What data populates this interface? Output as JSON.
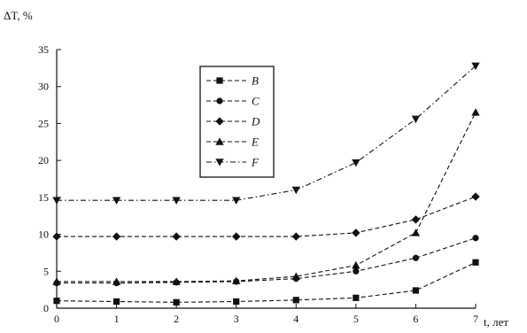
{
  "chart_data": {
    "type": "line",
    "ylabel": "ΔT, %",
    "xlabel": "t, лет",
    "x": [
      0,
      1,
      2,
      3,
      4,
      5,
      6,
      7
    ],
    "xlim": [
      0,
      7
    ],
    "ylim": [
      0,
      35
    ],
    "x_ticks": [
      0,
      1,
      2,
      3,
      4,
      5,
      6,
      7
    ],
    "y_ticks": [
      0,
      5,
      10,
      15,
      20,
      25,
      30,
      35
    ],
    "grid": false,
    "legend_position": "top-left",
    "series": [
      {
        "name": "B",
        "marker": "square",
        "dash": "dash",
        "values": [
          1.0,
          0.9,
          0.8,
          0.9,
          1.1,
          1.4,
          2.4,
          6.2
        ]
      },
      {
        "name": "C",
        "marker": "circle",
        "dash": "dash",
        "values": [
          3.4,
          3.4,
          3.5,
          3.6,
          4.0,
          5.0,
          6.8,
          9.5
        ]
      },
      {
        "name": "D",
        "marker": "diamond",
        "dash": "dash",
        "values": [
          9.7,
          9.7,
          9.7,
          9.7,
          9.7,
          10.2,
          12.0,
          15.1
        ]
      },
      {
        "name": "E",
        "marker": "triangle-up",
        "dash": "dash",
        "values": [
          3.6,
          3.6,
          3.6,
          3.7,
          4.3,
          5.8,
          10.2,
          26.5
        ]
      },
      {
        "name": "F",
        "marker": "triangle-down",
        "dash": "dashdot",
        "values": [
          14.6,
          14.6,
          14.6,
          14.6,
          16.0,
          19.7,
          25.6,
          32.8
        ]
      }
    ]
  }
}
